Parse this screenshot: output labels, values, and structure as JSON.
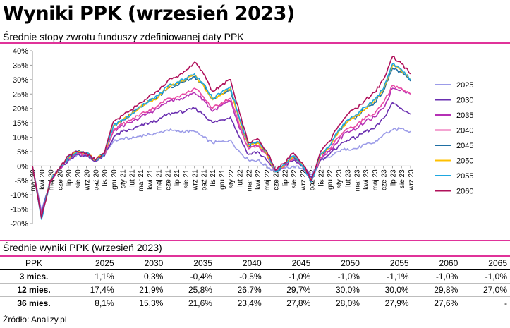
{
  "header": {
    "title": "Wyniki PPK (wrzesień 2023)",
    "subtitle": "Średnie stopy zwrotu funduszy zdefiniowanej daty PPK"
  },
  "colors": {
    "accent_rule": "#e0339a",
    "series": {
      "2025": "#9b9be8",
      "2030": "#6a2fb0",
      "2035": "#b530b5",
      "2040": "#e84aa4",
      "2045": "#1f6fa3",
      "2050": "#ffc000",
      "2055": "#1ea7e0",
      "2060": "#b0105a"
    }
  },
  "chart_data": {
    "type": "line",
    "title": "Średnie stopy zwrotu funduszy zdefiniowanej daty PPK",
    "ylim": [
      -20,
      40
    ],
    "y_ticks": [
      "40%",
      "35%",
      "30%",
      "25%",
      "20%",
      "15%",
      "10%",
      "5%",
      "0%",
      "-5%",
      "-10%",
      "-15%",
      "-20%"
    ],
    "x_ticks": [
      "mar 20",
      "kwi 20",
      "maj 20",
      "cze 20",
      "lip 20",
      "sie 20",
      "wrz 20",
      "paź 20",
      "lis 20",
      "gru 20",
      "sty 21",
      "lut 21",
      "mar 21",
      "kwi 21",
      "maj 21",
      "cze 21",
      "lip 21",
      "sie 21",
      "wrz 21",
      "paź 21",
      "lis 21",
      "gru 21",
      "sty 22",
      "lut 22",
      "mar 22",
      "kwi 22",
      "maj 22",
      "cze 22",
      "lip 22",
      "sie 22",
      "wrz 22",
      "paź 22",
      "lis 22",
      "gru 22",
      "sty 23",
      "lut 23",
      "mar 23",
      "kwi 23",
      "maj 23",
      "cze 23",
      "lip 23",
      "sie 23",
      "wrz 23"
    ],
    "x_tick_step": 1,
    "legend_position": "right",
    "grid": false,
    "series": [
      {
        "name": "2025",
        "values": [
          0,
          -15.5,
          -5,
          -1,
          2,
          4,
          3.5,
          2,
          4,
          8.5,
          9.5,
          9.5,
          10.5,
          11,
          11.5,
          12.5,
          12,
          12,
          12,
          10,
          8,
          8.5,
          9,
          5,
          2,
          2,
          0,
          -2,
          -1,
          0,
          -1,
          -3,
          2,
          3,
          5,
          6,
          6,
          7.5,
          8,
          11,
          12.5,
          13,
          12
        ]
      },
      {
        "name": "2030",
        "values": [
          0,
          -16.5,
          -5,
          -1,
          2,
          4,
          3.5,
          1.5,
          3.5,
          10,
          12,
          12.5,
          14,
          15,
          16,
          18,
          18.5,
          19,
          20,
          18,
          15,
          16,
          17,
          10,
          4,
          5,
          2,
          -2,
          0,
          2,
          0,
          -4,
          2,
          4,
          7,
          9,
          10,
          12,
          13,
          16.5,
          22,
          20,
          18
        ]
      },
      {
        "name": "2035",
        "values": [
          0,
          -17,
          -5,
          -1,
          2.5,
          4.5,
          4,
          2,
          4,
          12,
          14,
          15,
          17,
          18.5,
          20,
          22.5,
          23,
          24,
          25.5,
          23,
          19,
          21,
          22.5,
          13,
          6,
          7,
          4,
          -2,
          0,
          3,
          0,
          -5,
          3,
          5,
          9,
          12,
          13,
          15.5,
          17,
          20,
          27,
          26.5,
          25
        ]
      },
      {
        "name": "2040",
        "values": [
          0,
          -17.5,
          -5,
          -1,
          2.5,
          4.5,
          4,
          2,
          4,
          12.5,
          14.5,
          16,
          18,
          19.5,
          21,
          23.5,
          24,
          25,
          27,
          24,
          20,
          22,
          23.5,
          14,
          6,
          7,
          4,
          -2,
          0,
          3,
          0,
          -5,
          3,
          6,
          10,
          13,
          14,
          17,
          18,
          22,
          28,
          27,
          25
        ]
      },
      {
        "name": "2045",
        "values": [
          0,
          -18,
          -5,
          -1,
          3,
          5,
          4.5,
          2,
          4.5,
          14,
          16,
          18,
          20.5,
          22.5,
          24,
          27,
          28,
          29.5,
          31,
          28,
          23,
          25,
          26.5,
          16,
          7,
          8,
          4.5,
          -2,
          0.5,
          3.5,
          0,
          -5,
          4,
          7,
          12,
          15.5,
          17,
          20,
          22,
          26,
          34,
          32.5,
          29.5
        ]
      },
      {
        "name": "2050",
        "values": [
          0,
          -18,
          -5,
          -1,
          3,
          5,
          4.5,
          2,
          4.5,
          14,
          16,
          18,
          20.5,
          22.5,
          24,
          27,
          28.5,
          30,
          31.5,
          28,
          23,
          25,
          27,
          16,
          7,
          8,
          4.5,
          -2,
          0.5,
          3.5,
          0,
          -5,
          4,
          7,
          12,
          15.5,
          17.5,
          20,
          22.5,
          26.5,
          35,
          33,
          30
        ]
      },
      {
        "name": "2055",
        "values": [
          0,
          -18.5,
          -5,
          -1,
          3,
          5,
          4.5,
          2,
          4.5,
          14,
          16,
          18,
          20.5,
          23,
          24.5,
          27.5,
          29,
          30.5,
          32,
          28.5,
          23.5,
          25.5,
          27.5,
          16.5,
          7.5,
          8.5,
          5,
          -2,
          0.5,
          3.5,
          0,
          -5.5,
          4,
          7,
          12.5,
          16,
          18,
          20.5,
          23,
          27,
          35.5,
          33.5,
          30
        ]
      },
      {
        "name": "2060",
        "values": [
          0,
          -18,
          -5,
          -1,
          3.5,
          5,
          4.5,
          2,
          4.5,
          15.5,
          17.5,
          19.5,
          22,
          24.5,
          26,
          29.5,
          31,
          33,
          36,
          32,
          26,
          28,
          30,
          18.5,
          8,
          9.5,
          5.5,
          -1.5,
          1,
          4.5,
          1,
          -5,
          5,
          8.5,
          14,
          18,
          20,
          23,
          25.5,
          30,
          38,
          35.5,
          32
        ]
      }
    ]
  },
  "sections": {
    "table_title": "Średnie wyniki PPK (wrzesień 2023)",
    "source": "Źródło: Analizy.pl"
  },
  "table": {
    "header": [
      "PPK",
      "2025",
      "2030",
      "2035",
      "2040",
      "2045",
      "2050",
      "2055",
      "2060",
      "2065"
    ],
    "rows": [
      [
        "3 mies.",
        "1,1%",
        "0,3%",
        "-0,4%",
        "-0,5%",
        "-1,0%",
        "-1,0%",
        "-1,1%",
        "-1,0%",
        "-1,0%"
      ],
      [
        "12 mies.",
        "17,4%",
        "21,9%",
        "25,8%",
        "26,7%",
        "29,7%",
        "30,0%",
        "30,0%",
        "29,8%",
        "27,0%"
      ],
      [
        "36 mies.",
        "8,1%",
        "15,3%",
        "21,6%",
        "23,4%",
        "27,8%",
        "28,0%",
        "27,9%",
        "27,6%",
        "-"
      ]
    ]
  }
}
